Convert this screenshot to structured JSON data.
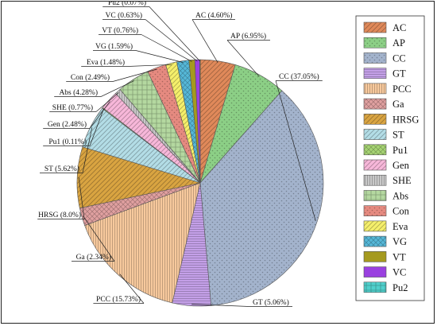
{
  "chart_data": {
    "type": "pie",
    "unit": "%",
    "slices": [
      {
        "name": "AC",
        "value": 4.6,
        "label": "AC (4.60%)",
        "color": "#e0895a",
        "pattern": "diag"
      },
      {
        "name": "AP",
        "value": 6.95,
        "label": "AP (6.95%)",
        "color": "#8ccf86",
        "pattern": "dots"
      },
      {
        "name": "CC",
        "value": 37.05,
        "label": "CC (37.05%)",
        "color": "#a3b3cc",
        "pattern": "dots"
      },
      {
        "name": "GT",
        "value": 5.06,
        "label": "GT (5.06%)",
        "color": "#c4a0e8",
        "pattern": "hlines"
      },
      {
        "name": "PCC",
        "value": 15.73,
        "label": "PCC (15.73%)",
        "color": "#f7c99d",
        "pattern": "vlines"
      },
      {
        "name": "Ga",
        "value": 2.34,
        "label": "Ga (2.34%)",
        "color": "#e0a0a0",
        "pattern": "cross"
      },
      {
        "name": "HRSG",
        "value": 8.0,
        "label": "HRSG (8.0%)",
        "color": "#d9a441",
        "pattern": "diag"
      },
      {
        "name": "ST",
        "value": 5.62,
        "label": "ST (5.62%)",
        "color": "#b3dde6",
        "pattern": "diag"
      },
      {
        "name": "Pu1",
        "value": 0.11,
        "label": "Pu1 (0.11%)",
        "color": "#a6d473",
        "pattern": "cross"
      },
      {
        "name": "Gen",
        "value": 2.48,
        "label": "Gen (2.48%)",
        "color": "#f7b7d9",
        "pattern": "diag"
      },
      {
        "name": "SHE",
        "value": 0.77,
        "label": "SHE (0.77%)",
        "color": "#c8c8c8",
        "pattern": "vlines"
      },
      {
        "name": "Abs",
        "value": 4.28,
        "label": "Abs (4.28%)",
        "color": "#b4d8a0",
        "pattern": "grid"
      },
      {
        "name": "Con",
        "value": 2.49,
        "label": "Con (2.49%)",
        "color": "#e58a80",
        "pattern": "dots"
      },
      {
        "name": "Eva",
        "value": 1.48,
        "label": "Eva (1.48%)",
        "color": "#f5ef6b",
        "pattern": "diag"
      },
      {
        "name": "VG",
        "value": 1.59,
        "label": "VG (1.59%)",
        "color": "#56b8d8",
        "pattern": "cross"
      },
      {
        "name": "VT",
        "value": 0.76,
        "label": "VT (0.76%)",
        "color": "#a59a1e",
        "pattern": "none"
      },
      {
        "name": "VC",
        "value": 0.63,
        "label": "VC (0.63%)",
        "color": "#9a40e0",
        "pattern": "none"
      },
      {
        "name": "Pu2",
        "value": 0.07,
        "label": "Pu2 (0.07%)",
        "color": "#50d0cc",
        "pattern": "grid"
      }
    ],
    "legend": [
      "AC",
      "AP",
      "CC",
      "GT",
      "PCC",
      "Ga",
      "HRSG",
      "ST",
      "Pu1",
      "Gen",
      "SHE",
      "Abs",
      "Con",
      "Eva",
      "VG",
      "VT",
      "VC",
      "Pu2"
    ],
    "legend_position": "right",
    "start": "top, clockwise"
  }
}
